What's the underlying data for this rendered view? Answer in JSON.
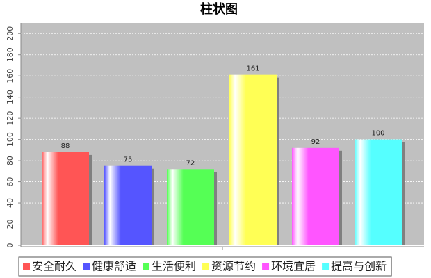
{
  "chart_data": {
    "type": "bar",
    "title": "柱状图",
    "categories": [
      "安全耐久",
      "健康舒适",
      "生活便利",
      "资源节约",
      "环境宜居",
      "提高与创新"
    ],
    "values": [
      88,
      75,
      72,
      161,
      92,
      100
    ],
    "colors": [
      "#ff5555",
      "#5555ff",
      "#55ff55",
      "#ffff55",
      "#ff55ff",
      "#55ffff"
    ],
    "ylim": [
      0,
      210
    ],
    "yticks": [
      0,
      20,
      40,
      60,
      80,
      100,
      120,
      140,
      160,
      180,
      200
    ],
    "grid": true,
    "legend": "bottom"
  }
}
